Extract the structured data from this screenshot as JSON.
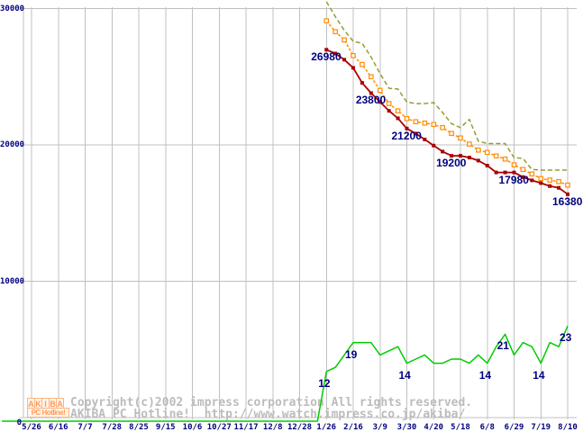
{
  "watermark": {
    "line1": "Copyright(c)2002 impress corporation All rights reserved.",
    "line2": "AKIBA PC Hotline!  http://www.watch.impress.co.jp/akiba/",
    "color": "#bcbcbc"
  },
  "logo": {
    "line1": "AKIBA",
    "line2": "PC Hotline!"
  },
  "chart_data": {
    "type": "line",
    "title": "",
    "xlabel": "",
    "ylabel": "",
    "ylim": [
      0,
      30000
    ],
    "grid": true,
    "legend": "none",
    "grid_color": "#c0c0c0",
    "label_color": "#000080",
    "x_tick_labels": [
      "5/26",
      "6/16",
      "7/7",
      "7/28",
      "8/25",
      "9/15",
      "10/6",
      "10/27",
      "11/17",
      "12/8",
      "12/28",
      "1/26",
      "2/16",
      "3/9",
      "3/30",
      "4/20",
      "5/18",
      "6/8",
      "6/29",
      "7/19",
      "8/10"
    ],
    "y_tick_labels": [
      "30000",
      "20000",
      "10000",
      "0"
    ],
    "y_tick_values": [
      30000,
      20000,
      10000,
      0
    ],
    "series_first_x_label": "1/26",
    "points_per_x_interval": 3,
    "series": [
      {
        "name": "highest_price",
        "color": "#999933",
        "line": "dashed",
        "dash": "5,3",
        "markers": "none",
        "axis": "price",
        "values": [
          30500,
          29400,
          28400,
          27600,
          27450,
          26450,
          25230,
          24150,
          24100,
          23140,
          23030,
          23030,
          23100,
          22370,
          21560,
          21270,
          21870,
          20280,
          20100,
          20100,
          20100,
          19070,
          19000,
          18200,
          18150,
          18150,
          18150,
          18150
        ]
      },
      {
        "name": "average_price",
        "color": "#ff8c00",
        "line": "dashed",
        "dash": "3,2",
        "markers": "hollow-square",
        "axis": "price",
        "values": [
          29100,
          28300,
          27700,
          26550,
          25900,
          25000,
          24000,
          23030,
          22500,
          21930,
          21700,
          21600,
          21500,
          21270,
          20840,
          20510,
          20060,
          19620,
          19450,
          19190,
          18960,
          18540,
          18200,
          17870,
          17530,
          17420,
          17310,
          17050
        ]
      },
      {
        "name": "lowest_price",
        "color": "#aa0000",
        "line": "solid",
        "dash": "",
        "markers": "filled-square",
        "axis": "price",
        "values": [
          26980,
          26700,
          26250,
          25650,
          24550,
          23800,
          23150,
          22500,
          21950,
          21200,
          20830,
          20400,
          19950,
          19510,
          19200,
          19200,
          19070,
          18850,
          18480,
          17980,
          17980,
          17980,
          17640,
          17400,
          17200,
          16980,
          16850,
          16380
        ]
      },
      {
        "name": "shop_count",
        "color": "#00cc00",
        "line": "solid",
        "dash": "",
        "markers": "none",
        "axis": "count",
        "leading_zero_from_left": true,
        "values": [
          12,
          13,
          16,
          19,
          19,
          19,
          16,
          17,
          18,
          14,
          15,
          16,
          14,
          14,
          15,
          15,
          14,
          16,
          14,
          18,
          21,
          16,
          19,
          18,
          14,
          19,
          18,
          23
        ]
      }
    ],
    "price_annotations": [
      {
        "index": 0,
        "text": "26980"
      },
      {
        "index": 5,
        "text": "23800"
      },
      {
        "index": 9,
        "text": "21200"
      },
      {
        "index": 14,
        "text": "19200"
      },
      {
        "index": 21,
        "text": "17980"
      },
      {
        "index": 27,
        "text": "16380"
      }
    ],
    "count_annotations": [
      {
        "index": 0,
        "text": "12"
      },
      {
        "index": 3,
        "text": "19"
      },
      {
        "index": 9,
        "text": "14"
      },
      {
        "index": 18,
        "text": "14"
      },
      {
        "index": 20,
        "text": "21"
      },
      {
        "index": 24,
        "text": "14"
      },
      {
        "index": 27,
        "text": "23"
      }
    ]
  }
}
